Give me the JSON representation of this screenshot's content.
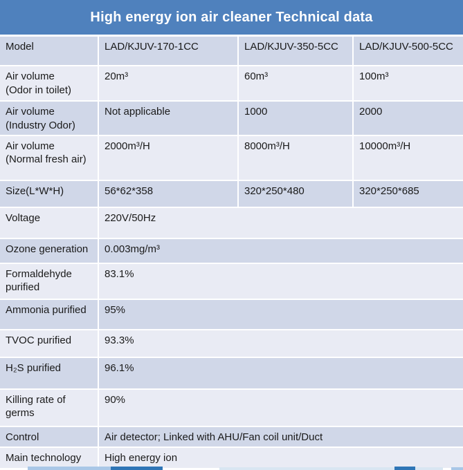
{
  "title": "High energy ion air cleaner Technical data",
  "colors": {
    "title_bg": "#4F81BD",
    "title_text": "#FFFFFF",
    "band_dark": "#D0D7E8",
    "band_light": "#E9EBF4",
    "cell_text": "#1A1A1A",
    "divider": "#FFFFFF",
    "fragment_dark_blue": "#2E75B6",
    "fragment_light_blue": "#A9C7E7",
    "fragment_pale_blue": "#D9E6F2"
  },
  "table": {
    "rows": [
      {
        "label": "Model",
        "values": [
          "LAD/KJUV-170-1CC",
          "LAD/KJUV-350-5CC",
          "LAD/KJUV-500-5CC"
        ]
      },
      {
        "label": "Air volume\n(Odor in toilet)",
        "values": [
          "20m³",
          "60m³",
          "100m³"
        ]
      },
      {
        "label": "Air volume\n(Industry Odor)",
        "values": [
          "Not applicable",
          "1000",
          "2000"
        ]
      },
      {
        "label": "Air volume\n(Normal fresh air)",
        "values": [
          "2000m³/H",
          "8000m³/H",
          "10000m³/H"
        ]
      },
      {
        "label": "Size(L*W*H)",
        "values": [
          "56*62*358",
          "320*250*480",
          "320*250*685"
        ]
      },
      {
        "label": "Voltage",
        "values": [
          "220V/50Hz"
        ]
      },
      {
        "label": "Ozone generation",
        "values": [
          "0.003mg/m³"
        ]
      },
      {
        "label": "Formaldehyde\npurified",
        "values": [
          "83.1%"
        ]
      },
      {
        "label": "Ammonia purified",
        "values": [
          "95%"
        ]
      },
      {
        "label": "TVOC purified",
        "values": [
          "93.3%"
        ]
      },
      {
        "label": "H₂S purified",
        "values": [
          "96.1%"
        ]
      },
      {
        "label": "Killing rate of\ngerms",
        "values": [
          "90%"
        ]
      },
      {
        "label": "Control",
        "values": [
          "Air detector; Linked with AHU/Fan coil unit/Duct"
        ]
      },
      {
        "label": "Main technology",
        "values": [
          "High energy ion"
        ]
      }
    ]
  }
}
